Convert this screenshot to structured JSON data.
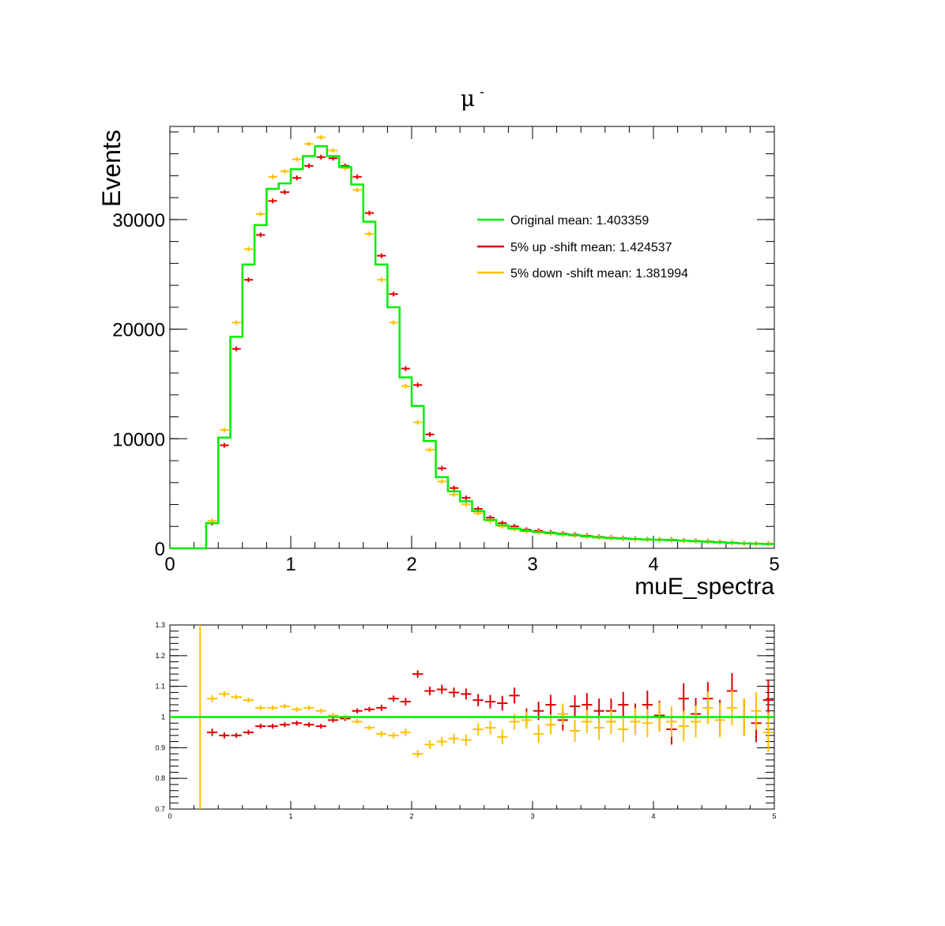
{
  "figure": {
    "title": "μ",
    "title_superscript": "-",
    "colors": {
      "original": "#00ee00",
      "up": "#e00000",
      "down": "#ffc000",
      "axis": "#000000"
    }
  },
  "chart_data": [
    {
      "type": "line",
      "subtype": "histogram-step-with-error-points",
      "title": "μ-",
      "xlabel": "muE_spectra",
      "ylabel": "Events",
      "xlim": [
        0,
        5
      ],
      "ylim": [
        0,
        38500
      ],
      "xticks": [
        "0",
        "1",
        "2",
        "3",
        "4",
        "5"
      ],
      "yticks": [
        "0",
        "10000",
        "20000",
        "30000"
      ],
      "bin_edges": [
        0,
        0.1,
        0.2,
        0.3,
        0.4,
        0.5,
        0.6,
        0.7,
        0.8,
        0.9,
        1.0,
        1.1,
        1.2,
        1.3,
        1.4,
        1.5,
        1.6,
        1.7,
        1.8,
        1.9,
        2.0,
        2.1,
        2.2,
        2.3,
        2.4,
        2.5,
        2.6,
        2.7,
        2.8,
        2.9,
        3.0,
        3.1,
        3.2,
        3.3,
        3.4,
        3.5,
        3.6,
        3.7,
        3.8,
        3.9,
        4.0,
        4.1,
        4.2,
        4.3,
        4.4,
        4.5,
        4.6,
        4.7,
        4.8,
        4.9,
        5.0
      ],
      "legend_position": "upper-right inside",
      "series": [
        {
          "name": "Original mean: 1.403359",
          "style": "step",
          "values": [
            0,
            0,
            0,
            2300,
            10100,
            19300,
            25900,
            29500,
            32800,
            33300,
            34600,
            35800,
            36700,
            35800,
            34800,
            33200,
            29800,
            25900,
            22000,
            15600,
            13000,
            9800,
            6500,
            5200,
            4300,
            3400,
            2600,
            2100,
            1800,
            1600,
            1500,
            1400,
            1300,
            1200,
            1100,
            1000,
            950,
            900,
            850,
            800,
            780,
            750,
            700,
            650,
            600,
            550,
            500,
            450,
            420,
            400
          ]
        },
        {
          "name": "5% up -shift mean: 1.424537",
          "style": "points",
          "values": [
            0,
            0,
            0,
            2300,
            9400,
            18200,
            24500,
            28600,
            31700,
            32500,
            33800,
            34900,
            35700,
            35600,
            34900,
            33900,
            30600,
            26700,
            23200,
            16400,
            14900,
            10400,
            7300,
            5500,
            4600,
            3600,
            2800,
            2300,
            2000,
            1700,
            1600,
            1450,
            1350,
            1250,
            1150,
            1050,
            980,
            920,
            870,
            820,
            800,
            780,
            720,
            680,
            630,
            580,
            520,
            460,
            430,
            410
          ]
        },
        {
          "name": "5% down -shift mean: 1.381994",
          "style": "points",
          "values": [
            0,
            0,
            0,
            2500,
            10800,
            20600,
            27300,
            30500,
            33900,
            34400,
            35500,
            36900,
            37500,
            36300,
            34700,
            32700,
            28700,
            24500,
            20600,
            14800,
            11500,
            9000,
            6100,
            4900,
            4000,
            3200,
            2500,
            2000,
            1750,
            1550,
            1450,
            1350,
            1250,
            1150,
            1050,
            980,
            920,
            870,
            820,
            780,
            760,
            730,
            680,
            630,
            580,
            540,
            480,
            440,
            400,
            380
          ]
        }
      ]
    },
    {
      "type": "scatter",
      "subtype": "ratio-with-error-bars",
      "title": "",
      "xlabel": "",
      "ylabel": "",
      "xlim": [
        0,
        5
      ],
      "ylim": [
        0.7,
        1.3
      ],
      "xticks": [
        "0",
        "1",
        "2",
        "3",
        "4",
        "5"
      ],
      "yticks": [
        "0.7",
        "0.8",
        "0.9",
        "1",
        "1.1",
        "1.2",
        "1.3"
      ],
      "reference_line": 1,
      "series": [
        {
          "name": "5% up -shift",
          "x": [
            0.35,
            0.45,
            0.55,
            0.65,
            0.75,
            0.85,
            0.95,
            1.05,
            1.15,
            1.25,
            1.35,
            1.45,
            1.55,
            1.65,
            1.75,
            1.85,
            1.95,
            2.05,
            2.15,
            2.25,
            2.35,
            2.45,
            2.55,
            2.65,
            2.75,
            2.85,
            2.95,
            3.05,
            3.15,
            3.25,
            3.35,
            3.45,
            3.55,
            3.65,
            3.75,
            3.85,
            3.95,
            4.05,
            4.15,
            4.25,
            4.35,
            4.45,
            4.55,
            4.65,
            4.75,
            4.85,
            4.95
          ],
          "values": [
            0.95,
            0.94,
            0.94,
            0.95,
            0.97,
            0.97,
            0.975,
            0.98,
            0.975,
            0.97,
            0.99,
            0.995,
            1.02,
            1.025,
            1.03,
            1.06,
            1.05,
            1.14,
            1.085,
            1.09,
            1.08,
            1.075,
            1.055,
            1.05,
            1.045,
            1.07,
            1.0,
            1.02,
            1.04,
            0.99,
            1.035,
            1.04,
            1.02,
            1.02,
            1.04,
            1.0,
            1.04,
            1.005,
            0.96,
            1.06,
            1.01,
            1.06,
            1.0,
            1.085,
            1.0,
            0.98,
            1.055
          ],
          "errors": [
            0.012,
            0.01,
            0.008,
            0.008,
            0.008,
            0.008,
            0.008,
            0.008,
            0.008,
            0.008,
            0.008,
            0.008,
            0.008,
            0.008,
            0.01,
            0.01,
            0.012,
            0.012,
            0.014,
            0.015,
            0.016,
            0.018,
            0.02,
            0.022,
            0.024,
            0.026,
            0.028,
            0.03,
            0.032,
            0.034,
            0.036,
            0.038,
            0.04,
            0.04,
            0.042,
            0.044,
            0.046,
            0.048,
            0.05,
            0.05,
            0.052,
            0.054,
            0.056,
            0.058,
            0.06,
            0.062,
            0.064
          ]
        },
        {
          "name": "5% down -shift",
          "x": [
            0.25,
            0.35,
            0.45,
            0.55,
            0.65,
            0.75,
            0.85,
            0.95,
            1.05,
            1.15,
            1.25,
            1.35,
            1.45,
            1.55,
            1.65,
            1.75,
            1.85,
            1.95,
            2.05,
            2.15,
            2.25,
            2.35,
            2.45,
            2.55,
            2.65,
            2.75,
            2.85,
            2.95,
            3.05,
            3.15,
            3.25,
            3.35,
            3.45,
            3.55,
            3.65,
            3.75,
            3.85,
            3.95,
            4.05,
            4.15,
            4.25,
            4.35,
            4.45,
            4.55,
            4.65,
            4.75,
            4.85,
            4.95
          ],
          "values": [
            1.0,
            1.06,
            1.075,
            1.065,
            1.055,
            1.03,
            1.03,
            1.035,
            1.025,
            1.03,
            1.02,
            1.005,
            1.0,
            0.985,
            0.965,
            0.945,
            0.94,
            0.95,
            0.88,
            0.91,
            0.92,
            0.93,
            0.925,
            0.96,
            0.965,
            0.935,
            0.985,
            0.99,
            0.945,
            0.975,
            1.01,
            0.955,
            0.985,
            0.965,
            0.985,
            0.96,
            0.985,
            0.98,
            1.0,
            0.985,
            0.97,
            0.985,
            1.03,
            0.99,
            1.03,
            1.0,
            1.02,
            0.95
          ],
          "errors": [
            0.3,
            0.012,
            0.01,
            0.008,
            0.008,
            0.008,
            0.008,
            0.008,
            0.008,
            0.008,
            0.008,
            0.008,
            0.008,
            0.008,
            0.008,
            0.01,
            0.01,
            0.012,
            0.012,
            0.014,
            0.015,
            0.016,
            0.018,
            0.02,
            0.022,
            0.024,
            0.026,
            0.028,
            0.03,
            0.032,
            0.034,
            0.036,
            0.038,
            0.04,
            0.04,
            0.042,
            0.044,
            0.046,
            0.048,
            0.05,
            0.05,
            0.052,
            0.054,
            0.056,
            0.058,
            0.06,
            0.062,
            0.064
          ]
        }
      ]
    }
  ]
}
